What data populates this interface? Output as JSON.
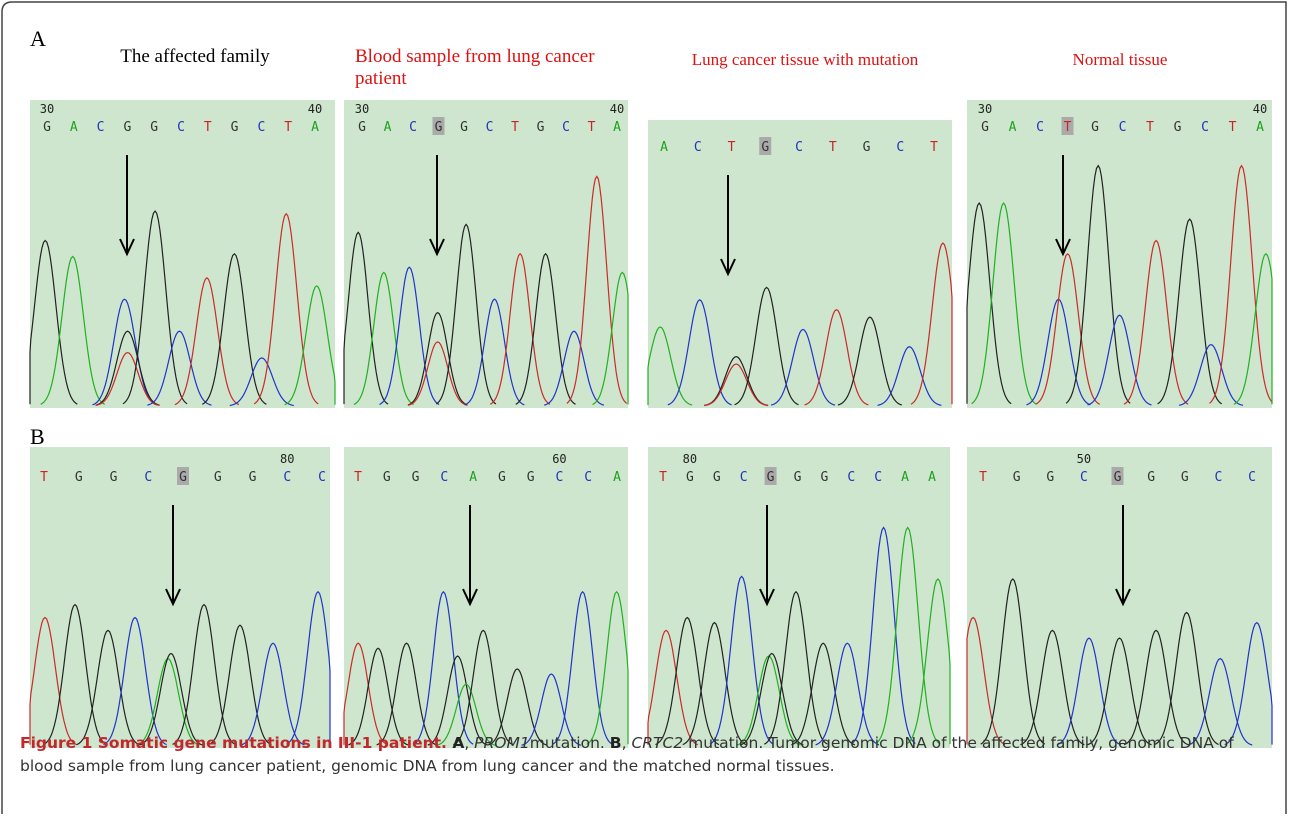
{
  "panel_labels": [
    "A",
    "B"
  ],
  "column_titles": [
    "The affected family",
    "Blood sample from lung cancer patient",
    "Lung cancer tissue with mutation",
    "Normal tissue"
  ],
  "rows": [
    {
      "panels": [
        {
          "numbers": [
            "30",
            "40"
          ],
          "bases": [
            "G",
            "A",
            "C",
            "G",
            "G",
            "C",
            "T",
            "G",
            "C",
            "T",
            "A"
          ]
        },
        {
          "numbers": [
            "30",
            "40"
          ],
          "bases": [
            "G",
            "A",
            "C",
            "G",
            "G",
            "C",
            "T",
            "G",
            "C",
            "T",
            "A"
          ]
        },
        {
          "numbers": [],
          "bases": [
            "A",
            "C",
            "T",
            "G",
            "C",
            "T",
            "G",
            "C",
            "T"
          ]
        },
        {
          "numbers": [
            "30",
            "40"
          ],
          "bases": [
            "G",
            "A",
            "C",
            "T",
            "G",
            "C",
            "T",
            "G",
            "C",
            "T",
            "A"
          ]
        }
      ]
    },
    {
      "panels": [
        {
          "numbers": [
            "80"
          ],
          "bases": [
            "T",
            "G",
            "G",
            "C",
            "G",
            "G",
            "G",
            "C",
            "C"
          ]
        },
        {
          "numbers": [
            "60"
          ],
          "bases": [
            "T",
            "G",
            "G",
            "C",
            "A",
            "G",
            "G",
            "C",
            "C",
            "A"
          ]
        },
        {
          "numbers": [
            "80"
          ],
          "bases": [
            "T",
            "G",
            "G",
            "C",
            "G",
            "G",
            "G",
            "C",
            "C",
            "A",
            "A"
          ]
        },
        {
          "numbers": [
            "50"
          ],
          "bases": [
            "T",
            "G",
            "G",
            "C",
            "G",
            "G",
            "G",
            "C",
            "C"
          ]
        }
      ]
    }
  ],
  "caption": [
    {
      "text": "Figure 1 Somatic gene mutations in III-1 patient. ",
      "style": "bold"
    },
    {
      "text": "A",
      "style": "boldk"
    },
    {
      "text": ", ",
      "style": "plain"
    },
    {
      "text": "PROM1",
      "style": "italic"
    },
    {
      "text": "mutation. ",
      "style": "plain"
    },
    {
      "text": "B",
      "style": "boldk"
    },
    {
      "text": ", ",
      "style": "plain"
    },
    {
      "text": "CRTC2",
      "style": "italic"
    },
    {
      "text": " mutation. Tumor genomic DNA of the affected family, genomic DNA of blood sample from lung cancer patient, genomic DNA from lung cancer and the matched normal tissues.",
      "style": "plain"
    }
  ]
}
